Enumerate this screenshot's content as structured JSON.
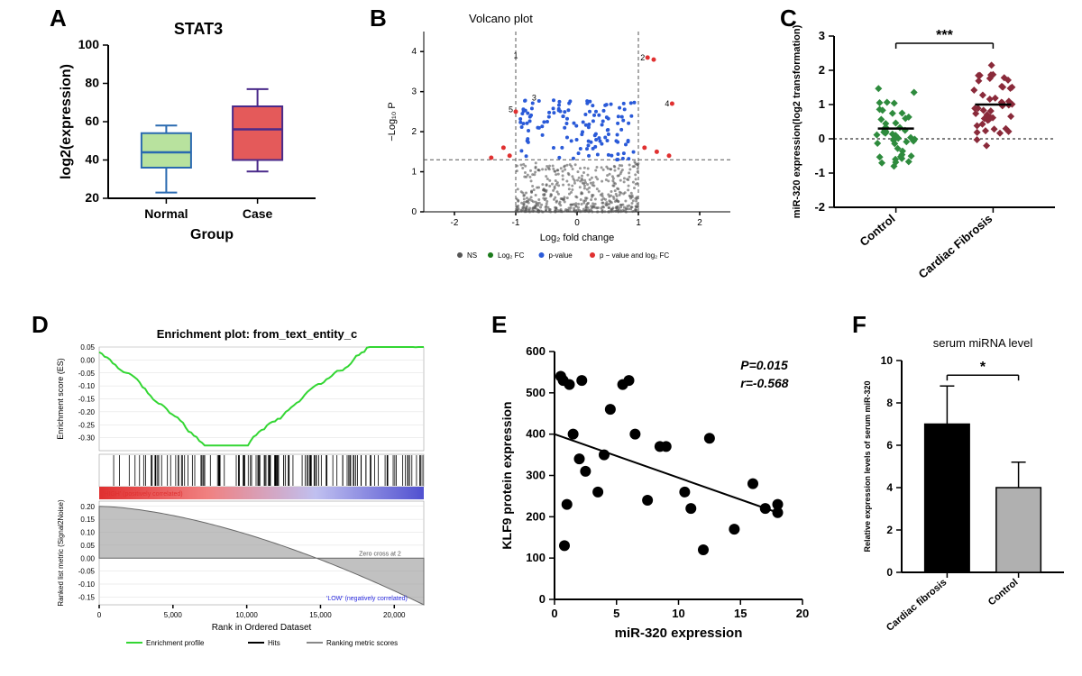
{
  "panelA": {
    "type": "boxplot",
    "title": "STAT3",
    "xlabel": "Group",
    "ylabel": "log2(expression)",
    "categories": [
      "Normal",
      "Case"
    ],
    "ylim": [
      20,
      100
    ],
    "ytick_step": 20,
    "yticks": [
      20,
      40,
      60,
      80,
      100
    ],
    "boxes": [
      {
        "min": 23,
        "q1": 36,
        "median": 44,
        "q3": 54,
        "max": 58,
        "fill": "#b8e29e",
        "stroke": "#2a6ab0"
      },
      {
        "min": 34,
        "q1": 40,
        "median": 56,
        "q3": 68,
        "max": 77,
        "fill": "#e45a5a",
        "stroke": "#4a2a8a"
      }
    ],
    "label_fontsize": 16,
    "tick_fontsize": 14
  },
  "panelB": {
    "type": "scatter",
    "title": "Volcano plot",
    "xlabel": "Log₂ fold change",
    "ylabel": "−Log₁₀ P",
    "xlim": [
      -2.5,
      2.5
    ],
    "ylim": [
      0,
      4.5
    ],
    "xticks": [
      -2,
      -1,
      0,
      1,
      2
    ],
    "yticks": [
      0,
      1,
      2,
      3,
      4
    ],
    "vlines": [
      -1,
      1
    ],
    "hline": 1.3,
    "line_style": "dashed",
    "line_color": "#555555",
    "legend": [
      {
        "label": "NS",
        "color": "#555555"
      },
      {
        "label": "Log₂ FC",
        "color": "#1a7a1a"
      },
      {
        "label": "p-value",
        "color": "#2a5ad8"
      },
      {
        "label": "p − value and log₂ FC",
        "color": "#e03030"
      }
    ],
    "highlighted_points": [
      {
        "label": "1",
        "x": -0.92,
        "y": 3.9
      },
      {
        "label": "2",
        "x": 1.15,
        "y": 3.85
      },
      {
        "label": "3",
        "x": -0.62,
        "y": 2.85
      },
      {
        "label": "4",
        "x": 1.55,
        "y": 2.7
      },
      {
        "label": "5",
        "x": -1.0,
        "y": 2.55
      }
    ],
    "ns_color": "#555555",
    "pval_color": "#2a5ad8",
    "sig_color": "#e03030",
    "background_color": "#ffffff"
  },
  "panelC": {
    "type": "scatter",
    "ylabel": "miR-320 expression(log2 transformation)",
    "categories": [
      "Control",
      "Cardiac Fibrosis"
    ],
    "ylim": [
      -2,
      3
    ],
    "yticks": [
      -2,
      -1,
      0,
      1,
      2,
      3
    ],
    "signif": "***",
    "colors": [
      "#2e8b3d",
      "#8a2a3a"
    ],
    "means": [
      0.3,
      1.0
    ],
    "marker": "diamond",
    "n_per_group": 45,
    "jitter_width": 0.35
  },
  "panelD": {
    "type": "gsea",
    "title": "Enrichment plot: from_text_entity_c",
    "es_ylim": [
      -0.35,
      0.05
    ],
    "es_yticks": [
      0.05,
      0.0,
      -0.05,
      -0.1,
      -0.15,
      -0.2,
      -0.25,
      -0.3
    ],
    "es_ylabel": "Enrichment score (ES)",
    "es_line_color": "#33d633",
    "xlabel": "Rank in Ordered Dataset",
    "xlim": [
      0,
      22000
    ],
    "xticks": [
      0,
      5000,
      10000,
      15000,
      20000
    ],
    "ranked_ylabel": "Ranked list metric (Signal2Noise)",
    "ranked_yticks": [
      0.2,
      0.15,
      0.1,
      0.05,
      0.0,
      -0.05,
      -0.1,
      -0.15
    ],
    "ranked_color": "#a0a0a0",
    "zero_cross_label": "Zero cross at 2",
    "pos_label": "'HIGH' (positively correlated)",
    "neg_label": "'LOW' (negatively correlated)",
    "pos_color": "#e03030",
    "neg_color": "#2a2ae0",
    "bottom_legend": [
      {
        "label": "Enrichment profile",
        "color": "#33d633"
      },
      {
        "label": "Hits",
        "color": "#000000"
      },
      {
        "label": "Ranking metric scores",
        "color": "#888888"
      }
    ],
    "heatmap_gradient": [
      "#e03030",
      "#f08080",
      "#c0c0f0",
      "#5050d0"
    ]
  },
  "panelE": {
    "type": "scatter",
    "xlabel": "miR-320 expression",
    "ylabel": "KLF9 protein expression",
    "xlim": [
      0,
      20
    ],
    "ylim": [
      0,
      600
    ],
    "xticks": [
      0,
      5,
      10,
      15,
      20
    ],
    "yticks": [
      0,
      100,
      200,
      300,
      400,
      500,
      600
    ],
    "stats": {
      "p": "P=0.015",
      "r": "r=-0.568"
    },
    "stats_fontstyle": "italic",
    "reg_line": {
      "x1": 0,
      "y1": 400,
      "x2": 18,
      "y2": 210
    },
    "marker_color": "#000000",
    "marker_size": 6,
    "points": [
      [
        0.5,
        540
      ],
      [
        0.7,
        530
      ],
      [
        0.8,
        130
      ],
      [
        1.0,
        230
      ],
      [
        1.2,
        520
      ],
      [
        1.5,
        400
      ],
      [
        2.0,
        340
      ],
      [
        2.2,
        530
      ],
      [
        2.5,
        310
      ],
      [
        3.5,
        260
      ],
      [
        4.0,
        350
      ],
      [
        4.5,
        460
      ],
      [
        5.5,
        520
      ],
      [
        6.0,
        530
      ],
      [
        6.5,
        400
      ],
      [
        7.5,
        240
      ],
      [
        8.5,
        370
      ],
      [
        9.0,
        370
      ],
      [
        10.5,
        260
      ],
      [
        11.0,
        220
      ],
      [
        12.0,
        120
      ],
      [
        12.5,
        390
      ],
      [
        14.5,
        170
      ],
      [
        16.0,
        280
      ],
      [
        17.0,
        220
      ],
      [
        18.0,
        230
      ],
      [
        18.0,
        210
      ]
    ]
  },
  "panelF": {
    "type": "bar",
    "title": "serum miRNA level",
    "ylabel": "Relative expression levels of serum miR-320",
    "categories": [
      "Cardiac fibrosis",
      "Control"
    ],
    "values": [
      7.0,
      4.0
    ],
    "errors": [
      1.8,
      1.2
    ],
    "bar_colors": [
      "#000000",
      "#b0b0b0"
    ],
    "ylim": [
      0,
      10
    ],
    "yticks": [
      0,
      2,
      4,
      6,
      8,
      10
    ],
    "signif": "*",
    "bar_width": 0.55
  },
  "labels": {
    "A": "A",
    "B": "B",
    "C": "C",
    "D": "D",
    "E": "E",
    "F": "F"
  }
}
